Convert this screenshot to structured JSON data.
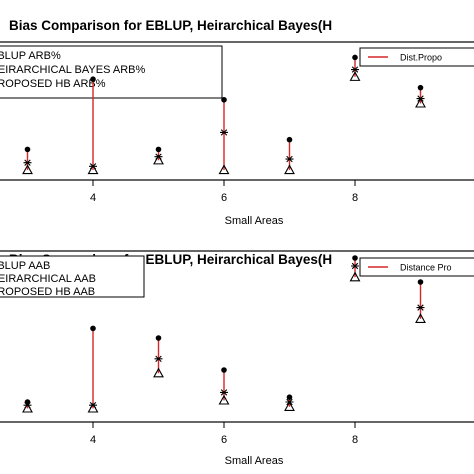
{
  "chart_data": [
    {
      "type": "scatter",
      "title": "Bias Comparison for EBLUP, Heirarchical Bayes(H",
      "xlabel": "Small Areas",
      "x_ticks": [
        "4",
        "6",
        "8"
      ],
      "xlim": [
        2,
        10
      ],
      "ylim": [
        0,
        1
      ],
      "y_axis_visible": false,
      "legend_left": [
        "EBLUP ARB%",
        "HEIRARCHICAL BAYES ARB%",
        "PROPOSED HB ARB%"
      ],
      "legend_right": "Dist.Propo",
      "x": [
        3,
        4,
        5,
        6,
        7,
        8,
        9
      ],
      "series": [
        {
          "name": "EBLUP ARB%",
          "marker": "circle",
          "values": [
            0.22,
            0.8,
            0.22,
            0.63,
            0.3,
            0.98,
            0.73
          ]
        },
        {
          "name": "HEIRARCHICAL BAYES ARB%",
          "marker": "star",
          "values": [
            0.11,
            0.08,
            0.16,
            0.36,
            0.14,
            0.88,
            0.64
          ]
        },
        {
          "name": "PROPOSED HB ARB%",
          "marker": "triangle",
          "values": [
            0.05,
            0.05,
            0.13,
            0.05,
            0.05,
            0.82,
            0.6
          ]
        }
      ],
      "distance_line_color": "#d62728"
    },
    {
      "type": "scatter",
      "title": "Bias Comparison for EBLUP, Heirarchical Bayes(H",
      "xlabel": "Small Areas",
      "x_ticks": [
        "4",
        "6",
        "8"
      ],
      "xlim": [
        2,
        10
      ],
      "ylim": [
        0,
        1
      ],
      "y_axis_visible": false,
      "legend_left": [
        "EBLUP AAB",
        "HEIRARCHICAL AAB",
        "PROPOSED HB AAB"
      ],
      "legend_right": "Distance Pro",
      "x": [
        3,
        4,
        5,
        6,
        7,
        8,
        9
      ],
      "series": [
        {
          "name": "EBLUP AAB",
          "marker": "circle",
          "values": [
            0.1,
            0.56,
            0.5,
            0.3,
            0.13,
            1.0,
            0.85
          ]
        },
        {
          "name": "HEIRARCHICAL AAB",
          "marker": "star",
          "values": [
            0.08,
            0.08,
            0.37,
            0.16,
            0.1,
            0.95,
            0.69
          ]
        },
        {
          "name": "PROPOSED HB AAB",
          "marker": "triangle",
          "values": [
            0.06,
            0.06,
            0.28,
            0.11,
            0.07,
            0.88,
            0.62
          ]
        }
      ],
      "distance_line_color": "#d62728"
    }
  ]
}
